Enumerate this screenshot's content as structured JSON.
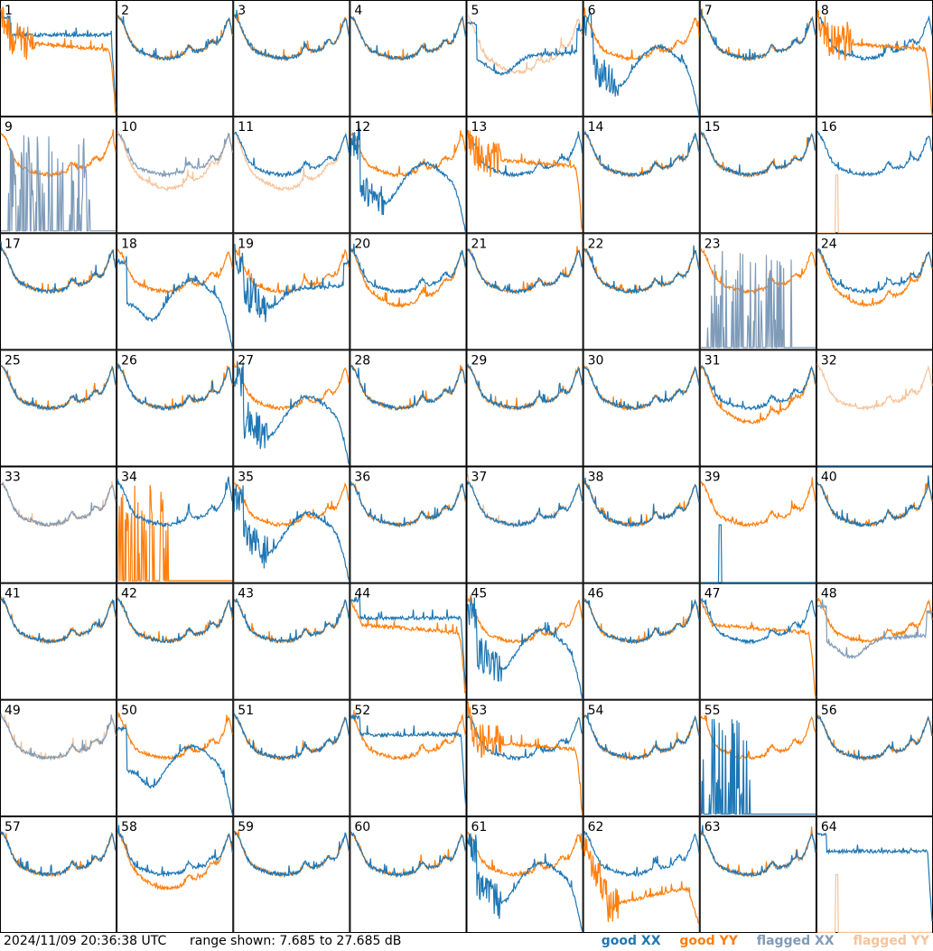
{
  "footer": {
    "timestamp": "2024/11/09 20:36:38 UTC",
    "range_label": "range shown: 7.685 to 27.685 dB"
  },
  "legend": [
    {
      "key": "good_xx",
      "label": "good XX",
      "color": "#1f77b4"
    },
    {
      "key": "good_yy",
      "label": "good YY",
      "color": "#ff7f0e"
    },
    {
      "key": "flagged_xx",
      "label": "flagged XX",
      "color": "#7f9bb8"
    },
    {
      "key": "flagged_yy",
      "label": "flagged YY",
      "color": "#f7c39a"
    }
  ],
  "chart_data": {
    "type": "line",
    "ylim": [
      7.685,
      27.685
    ],
    "yunit": "dB",
    "grid": {
      "rows": 8,
      "cols": 8
    },
    "panels": [
      {
        "id": "1",
        "xx": "high",
        "yy": "rolloff",
        "noisy": "yy"
      },
      {
        "id": "2",
        "xx": "normal",
        "yy": "normal"
      },
      {
        "id": "3",
        "xx": "normal",
        "yy": "normal"
      },
      {
        "id": "4",
        "xx": "normal",
        "yy": "normal"
      },
      {
        "id": "5",
        "xx": "dip",
        "yy": "flagged_low"
      },
      {
        "id": "6",
        "xx": "dropout",
        "yy": "normal",
        "noisy": "xx"
      },
      {
        "id": "7",
        "xx": "normal",
        "yy": "normal"
      },
      {
        "id": "8",
        "xx": "normal",
        "yy": "rolloff",
        "noisy": "yy"
      },
      {
        "id": "9",
        "xx": "flagged_spiky",
        "yy": "normal"
      },
      {
        "id": "10",
        "xx": "flagged_normal",
        "yy": "flagged_low"
      },
      {
        "id": "11",
        "xx": "normal",
        "yy": "flagged_low"
      },
      {
        "id": "12",
        "xx": "dropout",
        "yy": "normal",
        "noisy": "xx"
      },
      {
        "id": "13",
        "xx": "normal",
        "yy": "rolloff",
        "noisy": "yy"
      },
      {
        "id": "14",
        "xx": "normal",
        "yy": "normal"
      },
      {
        "id": "15",
        "xx": "normal",
        "yy": "normal"
      },
      {
        "id": "16",
        "xx": "normal",
        "yy": "flagged_spike"
      },
      {
        "id": "17",
        "xx": "normal",
        "yy": "normal"
      },
      {
        "id": "18",
        "xx": "dropout",
        "yy": "normal"
      },
      {
        "id": "19",
        "xx": "dip",
        "yy": "normal",
        "noisy": "xx"
      },
      {
        "id": "20",
        "xx": "normal",
        "yy": "low"
      },
      {
        "id": "21",
        "xx": "normal",
        "yy": "normal"
      },
      {
        "id": "22",
        "xx": "normal",
        "yy": "normal"
      },
      {
        "id": "23",
        "xx": "flagged_spiky",
        "yy": "normal"
      },
      {
        "id": "24",
        "xx": "normal",
        "yy": "low"
      },
      {
        "id": "25",
        "xx": "normal",
        "yy": "normal"
      },
      {
        "id": "26",
        "xx": "normal",
        "yy": "normal"
      },
      {
        "id": "27",
        "xx": "dropout",
        "yy": "normal",
        "noisy": "xx"
      },
      {
        "id": "28",
        "xx": "normal",
        "yy": "normal"
      },
      {
        "id": "29",
        "xx": "normal",
        "yy": "normal"
      },
      {
        "id": "30",
        "xx": "normal",
        "yy": "normal"
      },
      {
        "id": "31",
        "xx": "normal",
        "yy": "low"
      },
      {
        "id": "32",
        "xx": "flat_low",
        "yy": "flagged_normal"
      },
      {
        "id": "33",
        "xx": "flagged_normal",
        "yy": "flagged_normal"
      },
      {
        "id": "34",
        "xx": "normal",
        "yy": "flagged_spiky_orange"
      },
      {
        "id": "35",
        "xx": "dropout",
        "yy": "normal",
        "noisy": "xx"
      },
      {
        "id": "36",
        "xx": "normal",
        "yy": "normal"
      },
      {
        "id": "37",
        "xx": "normal",
        "yy": "flagged_normal"
      },
      {
        "id": "38",
        "xx": "normal",
        "yy": "normal"
      },
      {
        "id": "39",
        "xx": "flat_low_spike",
        "yy": "normal"
      },
      {
        "id": "40",
        "xx": "normal",
        "yy": "normal"
      },
      {
        "id": "41",
        "xx": "normal",
        "yy": "normal"
      },
      {
        "id": "42",
        "xx": "normal",
        "yy": "normal"
      },
      {
        "id": "43",
        "xx": "normal",
        "yy": "normal"
      },
      {
        "id": "44",
        "xx": "high",
        "yy": "rolloff"
      },
      {
        "id": "45",
        "xx": "dropout",
        "yy": "normal",
        "noisy": "xx"
      },
      {
        "id": "46",
        "xx": "normal",
        "yy": "normal"
      },
      {
        "id": "47",
        "xx": "normal",
        "yy": "rolloff"
      },
      {
        "id": "48",
        "xx": "flagged_dip",
        "yy": "normal"
      },
      {
        "id": "49",
        "xx": "flagged_normal",
        "yy": "flagged_normal"
      },
      {
        "id": "50",
        "xx": "dropout",
        "yy": "normal"
      },
      {
        "id": "51",
        "xx": "normal",
        "yy": "normal"
      },
      {
        "id": "52",
        "xx": "high",
        "yy": "normal"
      },
      {
        "id": "53",
        "xx": "normal",
        "yy": "rolloff",
        "noisy": "yy"
      },
      {
        "id": "54",
        "xx": "normal",
        "yy": "normal"
      },
      {
        "id": "55",
        "xx": "spiky_low",
        "yy": "normal"
      },
      {
        "id": "56",
        "xx": "normal",
        "yy": "normal"
      },
      {
        "id": "57",
        "xx": "normal",
        "yy": "normal"
      },
      {
        "id": "58",
        "xx": "normal",
        "yy": "low"
      },
      {
        "id": "59",
        "xx": "normal",
        "yy": "normal"
      },
      {
        "id": "60",
        "xx": "normal",
        "yy": "normal"
      },
      {
        "id": "61",
        "xx": "dropout",
        "yy": "normal",
        "noisy": "xx"
      },
      {
        "id": "62",
        "xx": "normal",
        "yy": "rolloff_low",
        "noisy": "yy"
      },
      {
        "id": "63",
        "xx": "normal",
        "yy": "normal"
      },
      {
        "id": "64",
        "xx": "high",
        "yy": "flagged_spike"
      }
    ]
  }
}
